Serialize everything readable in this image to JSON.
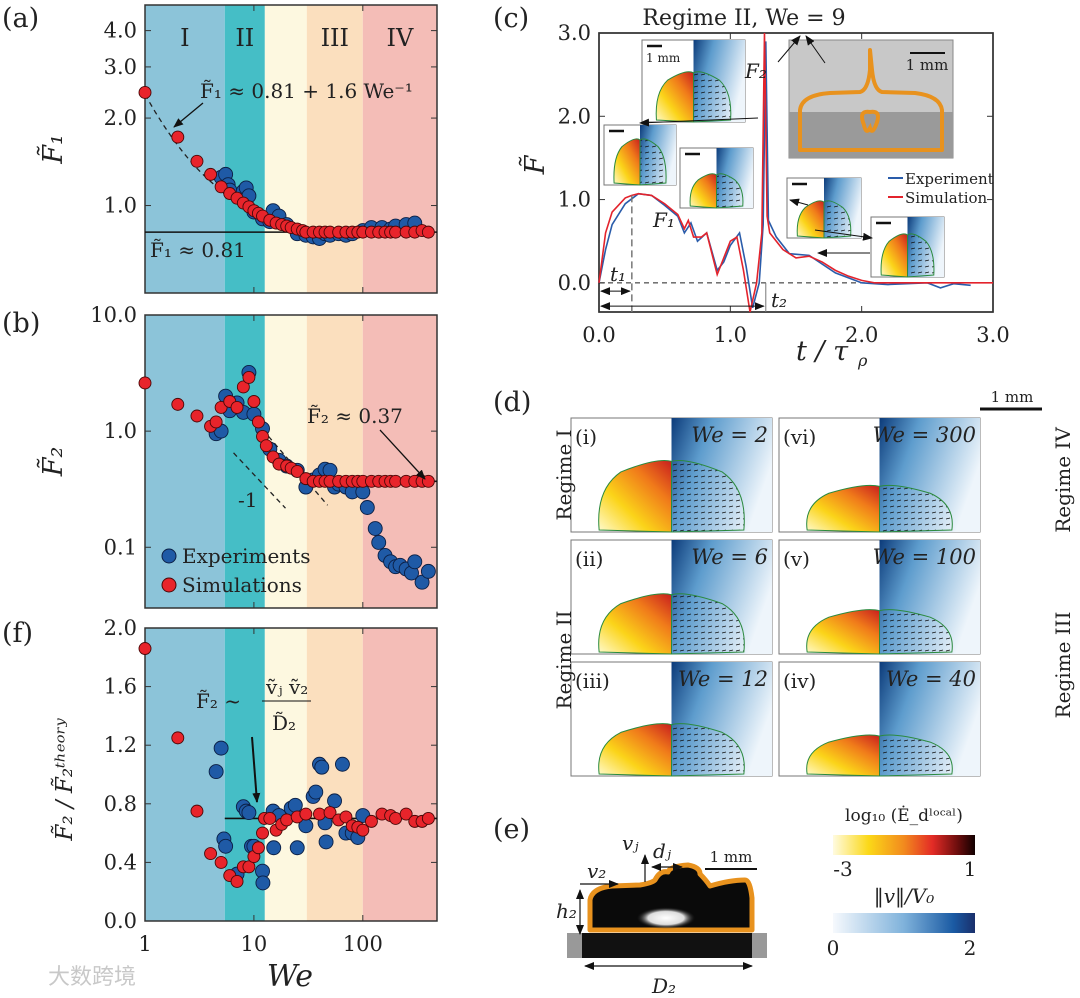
{
  "panel_labels": {
    "a": "(a)",
    "b": "(b)",
    "c": "(c)",
    "d": "(d)",
    "e": "(e)",
    "f": "(f)"
  },
  "regimes": [
    "I",
    "II",
    "III",
    "IV"
  ],
  "colors": {
    "regime_I": "#8cc4d9",
    "regime_II": "#45bec6",
    "regime_transition": "#fdf8e0",
    "regime_III": "#fbdfbe",
    "regime_IV": "#f4bdb7",
    "experiment": "#1f5aa6",
    "simulation": "#e8242b",
    "outline": "#e8921e"
  },
  "chart_data": [
    {
      "id": "a",
      "type": "scatter",
      "xscale": "log",
      "yscale": "log",
      "xlim": [
        1,
        480
      ],
      "ylim": [
        0.5,
        4.9
      ],
      "xticks": [
        1,
        10,
        100
      ],
      "yticks": [
        1.0,
        2.0,
        3.0,
        4.0
      ],
      "ytick_labels": [
        "1.0",
        "2.0",
        "3.0",
        "4.0"
      ],
      "ylabel": "F̃₁",
      "regime_bounds": [
        1,
        5.4,
        12.6,
        30.6,
        100,
        480
      ],
      "annotations": {
        "fit": "F̃₁ ≈ 0.81 + 1.6 We⁻¹",
        "plateau": "F̃₁ ≈ 0.81"
      },
      "fit": {
        "constant": 0.81,
        "coef": 1.6
      },
      "series": [
        {
          "name": "Simulations",
          "x": [
            1,
            2,
            3,
            4,
            5,
            6,
            7,
            8,
            9,
            10,
            11,
            12,
            14,
            16,
            18,
            20,
            22,
            25,
            28,
            30,
            35,
            40,
            45,
            50,
            60,
            70,
            80,
            90,
            100,
            120,
            140,
            160,
            180,
            200,
            250,
            300,
            350,
            400
          ],
          "y": [
            2.45,
            1.72,
            1.42,
            1.28,
            1.16,
            1.1,
            1.06,
            1.02,
            0.99,
            0.96,
            0.94,
            0.92,
            0.89,
            0.87,
            0.86,
            0.85,
            0.84,
            0.83,
            0.82,
            0.81,
            0.81,
            0.81,
            0.81,
            0.81,
            0.81,
            0.81,
            0.81,
            0.81,
            0.81,
            0.81,
            0.81,
            0.81,
            0.81,
            0.81,
            0.81,
            0.81,
            0.82,
            0.81
          ]
        },
        {
          "name": "Experiments",
          "x": [
            5,
            5.5,
            5.8,
            6,
            8,
            8.5,
            9,
            10,
            12,
            14,
            15,
            17,
            20,
            25,
            30,
            35,
            40,
            45,
            50,
            60,
            70,
            80,
            100,
            120,
            150,
            180,
            200,
            250,
            300
          ],
          "y": [
            1.25,
            1.28,
            1.18,
            1.13,
            1.12,
            1.15,
            1.08,
            0.95,
            0.9,
            0.88,
            0.96,
            0.92,
            0.86,
            0.8,
            0.79,
            0.78,
            0.77,
            0.8,
            0.79,
            0.8,
            0.79,
            0.8,
            0.82,
            0.84,
            0.84,
            0.83,
            0.85,
            0.86,
            0.87
          ]
        }
      ]
    },
    {
      "id": "b",
      "type": "scatter",
      "xscale": "log",
      "yscale": "log",
      "xlim": [
        1,
        480
      ],
      "ylim": [
        0.03,
        10
      ],
      "xticks": [
        1,
        10,
        100
      ],
      "yticks": [
        0.1,
        1.0,
        10.0
      ],
      "ytick_labels": [
        "0.1",
        "1.0",
        "10.0"
      ],
      "ylabel": "F̃₂",
      "regime_bounds": [
        1,
        5.4,
        12.6,
        30.6,
        100,
        480
      ],
      "annotations": {
        "plateau": "F̃₂ ≈ 0.37",
        "slope": "-1"
      },
      "plateau": 0.37,
      "legend": {
        "position": "bottom-left",
        "entries": [
          "Experiments",
          "Simulations"
        ]
      },
      "series": [
        {
          "name": "Simulations",
          "x": [
            1,
            2,
            3,
            4,
            4.5,
            5,
            6,
            7,
            8,
            9,
            10,
            11,
            12,
            13,
            15,
            17,
            20,
            22,
            25,
            30,
            35,
            40,
            45,
            50,
            60,
            70,
            80,
            90,
            100,
            120,
            140,
            160,
            180,
            200,
            250,
            300,
            350,
            400
          ],
          "y": [
            2.6,
            1.7,
            1.35,
            1.1,
            1.2,
            1.6,
            1.8,
            1.6,
            2.4,
            2.9,
            1.8,
            1.2,
            0.9,
            0.75,
            0.6,
            0.52,
            0.5,
            0.48,
            0.45,
            0.39,
            0.37,
            0.37,
            0.37,
            0.37,
            0.37,
            0.37,
            0.37,
            0.37,
            0.37,
            0.37,
            0.37,
            0.37,
            0.37,
            0.37,
            0.37,
            0.37,
            0.37,
            0.37
          ]
        },
        {
          "name": "Experiments",
          "x": [
            4.5,
            5,
            5.5,
            6,
            7,
            8,
            9,
            10,
            12,
            14,
            17,
            20,
            25,
            30,
            35,
            40,
            45,
            50,
            55,
            60,
            70,
            80,
            100,
            110,
            130,
            140,
            160,
            180,
            200,
            220,
            250,
            280,
            300,
            350,
            400
          ],
          "y": [
            0.95,
            1.0,
            2.0,
            1.5,
            1.75,
            1.45,
            3.2,
            1.4,
            1.05,
            0.7,
            0.56,
            0.5,
            0.46,
            0.33,
            0.38,
            0.42,
            0.47,
            0.46,
            0.33,
            0.35,
            0.33,
            0.3,
            0.3,
            0.22,
            0.145,
            0.11,
            0.085,
            0.075,
            0.068,
            0.07,
            0.065,
            0.06,
            0.075,
            0.05,
            0.062
          ]
        }
      ]
    },
    {
      "id": "f",
      "type": "scatter",
      "xscale": "log",
      "yscale": "linear",
      "xlim": [
        1,
        480
      ],
      "ylim": [
        0,
        2.0
      ],
      "xticks": [
        1,
        10,
        100
      ],
      "xtick_labels": [
        "1",
        "10",
        "100"
      ],
      "yticks": [
        0,
        0.4,
        0.8,
        1.2,
        1.6,
        2.0
      ],
      "ytick_labels": [
        "0.0",
        "0.4",
        "0.8",
        "1.2",
        "1.6",
        "2.0"
      ],
      "xlabel": "We",
      "ylabel": "F̃₂ / F̃₂ᵗʰᵉᵒʳʸ",
      "regime_bounds": [
        1,
        5.4,
        12.6,
        30.6,
        100,
        480
      ],
      "annotations": {
        "theory_lhs": "F̃₂ ~",
        "theory_num": "ṽⱼ ṽ₂",
        "theory_den": "D̃₂"
      },
      "plateau": 0.7,
      "series": [
        {
          "name": "Simulations",
          "x": [
            1,
            2,
            3,
            4,
            5,
            6,
            7,
            8,
            9,
            10,
            11,
            12,
            12.5,
            14,
            16,
            18,
            20,
            25,
            30,
            40,
            50,
            60,
            70,
            80,
            90,
            100,
            120,
            150,
            180,
            200,
            250,
            300,
            350,
            400
          ],
          "y": [
            1.86,
            1.25,
            0.75,
            0.46,
            0.4,
            0.31,
            0.27,
            0.37,
            0.37,
            0.44,
            0.5,
            0.6,
            0.7,
            0.7,
            0.62,
            0.66,
            0.69,
            0.71,
            0.73,
            0.73,
            0.74,
            0.69,
            0.71,
            0.65,
            0.64,
            0.62,
            0.68,
            0.73,
            0.72,
            0.7,
            0.73,
            0.68,
            0.68,
            0.7
          ]
        },
        {
          "name": "Experiments",
          "x": [
            4.5,
            5,
            5.3,
            5.5,
            7,
            8,
            8.5,
            9,
            9.5,
            10,
            12,
            12.1,
            15,
            15.2,
            17,
            22,
            24,
            25,
            30,
            35,
            37,
            40,
            42,
            45,
            46,
            55,
            65,
            70,
            80,
            90,
            100
          ],
          "y": [
            1.02,
            1.18,
            0.56,
            0.51,
            0.32,
            0.78,
            0.75,
            0.74,
            0.51,
            0.51,
            0.34,
            0.26,
            0.75,
            0.5,
            0.72,
            0.77,
            0.79,
            0.5,
            0.65,
            0.85,
            0.88,
            1.07,
            1.05,
            0.67,
            0.54,
            0.82,
            1.07,
            0.6,
            0.6,
            0.57,
            0.72
          ]
        }
      ]
    },
    {
      "id": "c",
      "type": "line",
      "title": "Regime II, We = 9",
      "xlim": [
        0,
        3.0
      ],
      "ylim": [
        -0.35,
        3.0
      ],
      "xticks": [
        0,
        1.0,
        2.0,
        3.0
      ],
      "xtick_labels": [
        "0.0",
        "1.0",
        "2.0",
        "3.0"
      ],
      "yticks": [
        0,
        1.0,
        2.0,
        3.0
      ],
      "ytick_labels": [
        "0.0",
        "1.0",
        "2.0",
        "3.0"
      ],
      "xlabel": "t / τ",
      "xlabel_sub": "ρ",
      "ylabel": "F̃",
      "legend": {
        "position": "right",
        "entries": [
          "Experiment",
          "Simulation"
        ]
      },
      "markers": {
        "t1": 0.25,
        "t2": 1.27
      },
      "series": [
        {
          "name": "Experiment",
          "x": [
            0,
            0.05,
            0.1,
            0.2,
            0.3,
            0.4,
            0.5,
            0.6,
            0.65,
            0.7,
            0.75,
            0.82,
            0.9,
            0.95,
            1.0,
            1.07,
            1.12,
            1.17,
            1.22,
            1.25,
            1.27,
            1.29,
            1.35,
            1.45,
            1.6,
            1.8,
            2.0,
            2.2,
            2.5,
            2.6,
            2.7,
            2.83
          ],
          "y": [
            0,
            0.4,
            0.7,
            0.95,
            1.07,
            1.05,
            0.93,
            0.8,
            0.6,
            0.72,
            0.5,
            0.6,
            0.15,
            0.25,
            0.45,
            0.6,
            0.2,
            -0.3,
            0.0,
            0.7,
            2.9,
            0.75,
            0.55,
            0.35,
            0.33,
            0.12,
            0.0,
            -0.02,
            0.0,
            -0.06,
            -0.01,
            -0.03
          ]
        },
        {
          "name": "Simulation",
          "x": [
            0,
            0.05,
            0.1,
            0.2,
            0.25,
            0.3,
            0.4,
            0.5,
            0.6,
            0.65,
            0.68,
            0.72,
            0.78,
            0.82,
            0.9,
            0.95,
            1.0,
            1.05,
            1.1,
            1.15,
            1.2,
            1.24,
            1.26,
            1.28,
            1.3,
            1.4,
            1.5,
            1.6,
            1.7,
            1.8,
            1.9,
            2.0,
            2.1,
            3.0
          ],
          "y": [
            0,
            0.6,
            0.85,
            1.02,
            1.05,
            1.07,
            1.05,
            0.95,
            0.82,
            0.65,
            0.75,
            0.55,
            0.55,
            0.6,
            0.1,
            0.3,
            0.5,
            0.55,
            0.15,
            -0.35,
            0.0,
            0.6,
            3.0,
            0.8,
            0.6,
            0.4,
            0.3,
            0.32,
            0.25,
            0.15,
            0.08,
            0.03,
            0.0,
            0.0
          ]
        }
      ]
    }
  ],
  "panel_c": {
    "scale_bar": "1 mm",
    "f1": "F₁",
    "f2": "F₂",
    "t1": "t₁",
    "t2": "t₂"
  },
  "panel_d": {
    "scale_bar": "1 mm",
    "regime_labels": {
      "left_top": "Regime I",
      "left_bottom": "Regime II",
      "right_top": "Regime IV",
      "right_bottom": "Regime III"
    },
    "cells": [
      {
        "tag": "(i)",
        "we": "We = 2"
      },
      {
        "tag": "(vi)",
        "we": "We = 300"
      },
      {
        "tag": "(ii)",
        "we": "We = 6"
      },
      {
        "tag": "(v)",
        "we": "We = 100"
      },
      {
        "tag": "(iii)",
        "we": "We = 12"
      },
      {
        "tag": "(iv)",
        "we": "We = 40"
      }
    ]
  },
  "panel_e": {
    "vj": "vⱼ",
    "dj": "dⱼ",
    "v2": "v₂",
    "h2": "h₂",
    "D2": "D₂",
    "scale_bar": "1 mm",
    "cbar1": {
      "label": "log₁₀ (Ė_dˡᵒᶜᵃˡ)",
      "min": "-3",
      "max": "1"
    },
    "cbar2": {
      "label": "‖v‖/V₀",
      "min": "0",
      "max": "2"
    }
  },
  "watermark": "大数跨境"
}
